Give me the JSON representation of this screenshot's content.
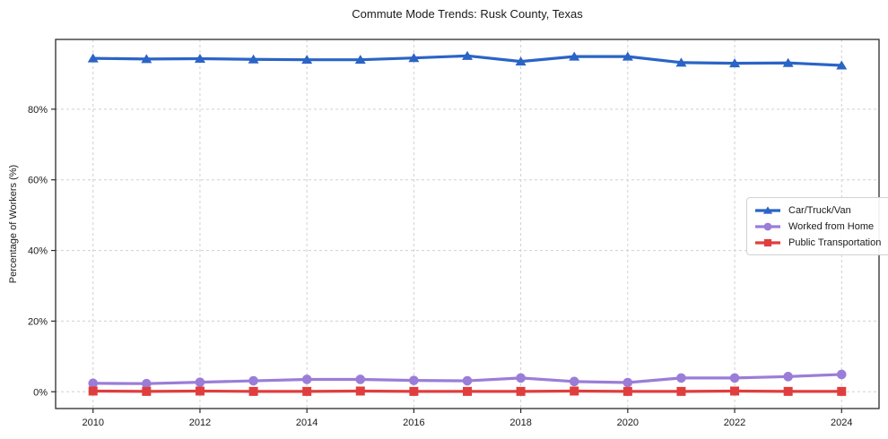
{
  "chart_data": {
    "type": "line",
    "title": "Commute Mode Trends: Rusk County, Texas",
    "xlabel": "",
    "ylabel": "Percentage of Workers (%)",
    "x": [
      2010,
      2011,
      2012,
      2013,
      2014,
      2015,
      2016,
      2017,
      2018,
      2019,
      2020,
      2021,
      2022,
      2023,
      2024
    ],
    "series": [
      {
        "name": "Car/Truck/Van",
        "color": "#2a64c6",
        "marker": "triangle",
        "values": [
          94.4,
          94.2,
          94.3,
          94.1,
          94.0,
          94.0,
          94.5,
          95.1,
          93.5,
          94.9,
          94.9,
          93.2,
          93.0,
          93.1,
          92.4
        ]
      },
      {
        "name": "Worked from Home",
        "color": "#9a7dd8",
        "marker": "circle",
        "values": [
          2.4,
          2.3,
          2.7,
          3.1,
          3.5,
          3.5,
          3.2,
          3.1,
          3.9,
          2.9,
          2.6,
          3.9,
          3.9,
          4.3,
          4.9
        ]
      },
      {
        "name": "Public Transportation",
        "color": "#e03e3e",
        "marker": "square",
        "values": [
          0.2,
          0.1,
          0.2,
          0.1,
          0.1,
          0.2,
          0.1,
          0.1,
          0.1,
          0.2,
          0.1,
          0.1,
          0.2,
          0.1,
          0.1
        ]
      }
    ],
    "xlim": [
      2009.3,
      2024.7
    ],
    "ylim": [
      -4.75,
      99.75
    ],
    "x_ticks": {
      "values": [
        2010,
        2012,
        2014,
        2016,
        2018,
        2020,
        2022,
        2024
      ],
      "labels": [
        "2010",
        "2012",
        "2014",
        "2016",
        "2018",
        "2020",
        "2022",
        "2024"
      ]
    },
    "y_ticks": {
      "values": [
        0,
        20,
        40,
        60,
        80
      ],
      "labels": [
        "0%",
        "20%",
        "40%",
        "60%",
        "80%"
      ]
    },
    "grid": {
      "show": true,
      "color": "#d0d0d0",
      "dash": "3 3"
    },
    "frame_color": "#2b2b2b",
    "background": "#ffffff",
    "legend_position": "center-right"
  }
}
